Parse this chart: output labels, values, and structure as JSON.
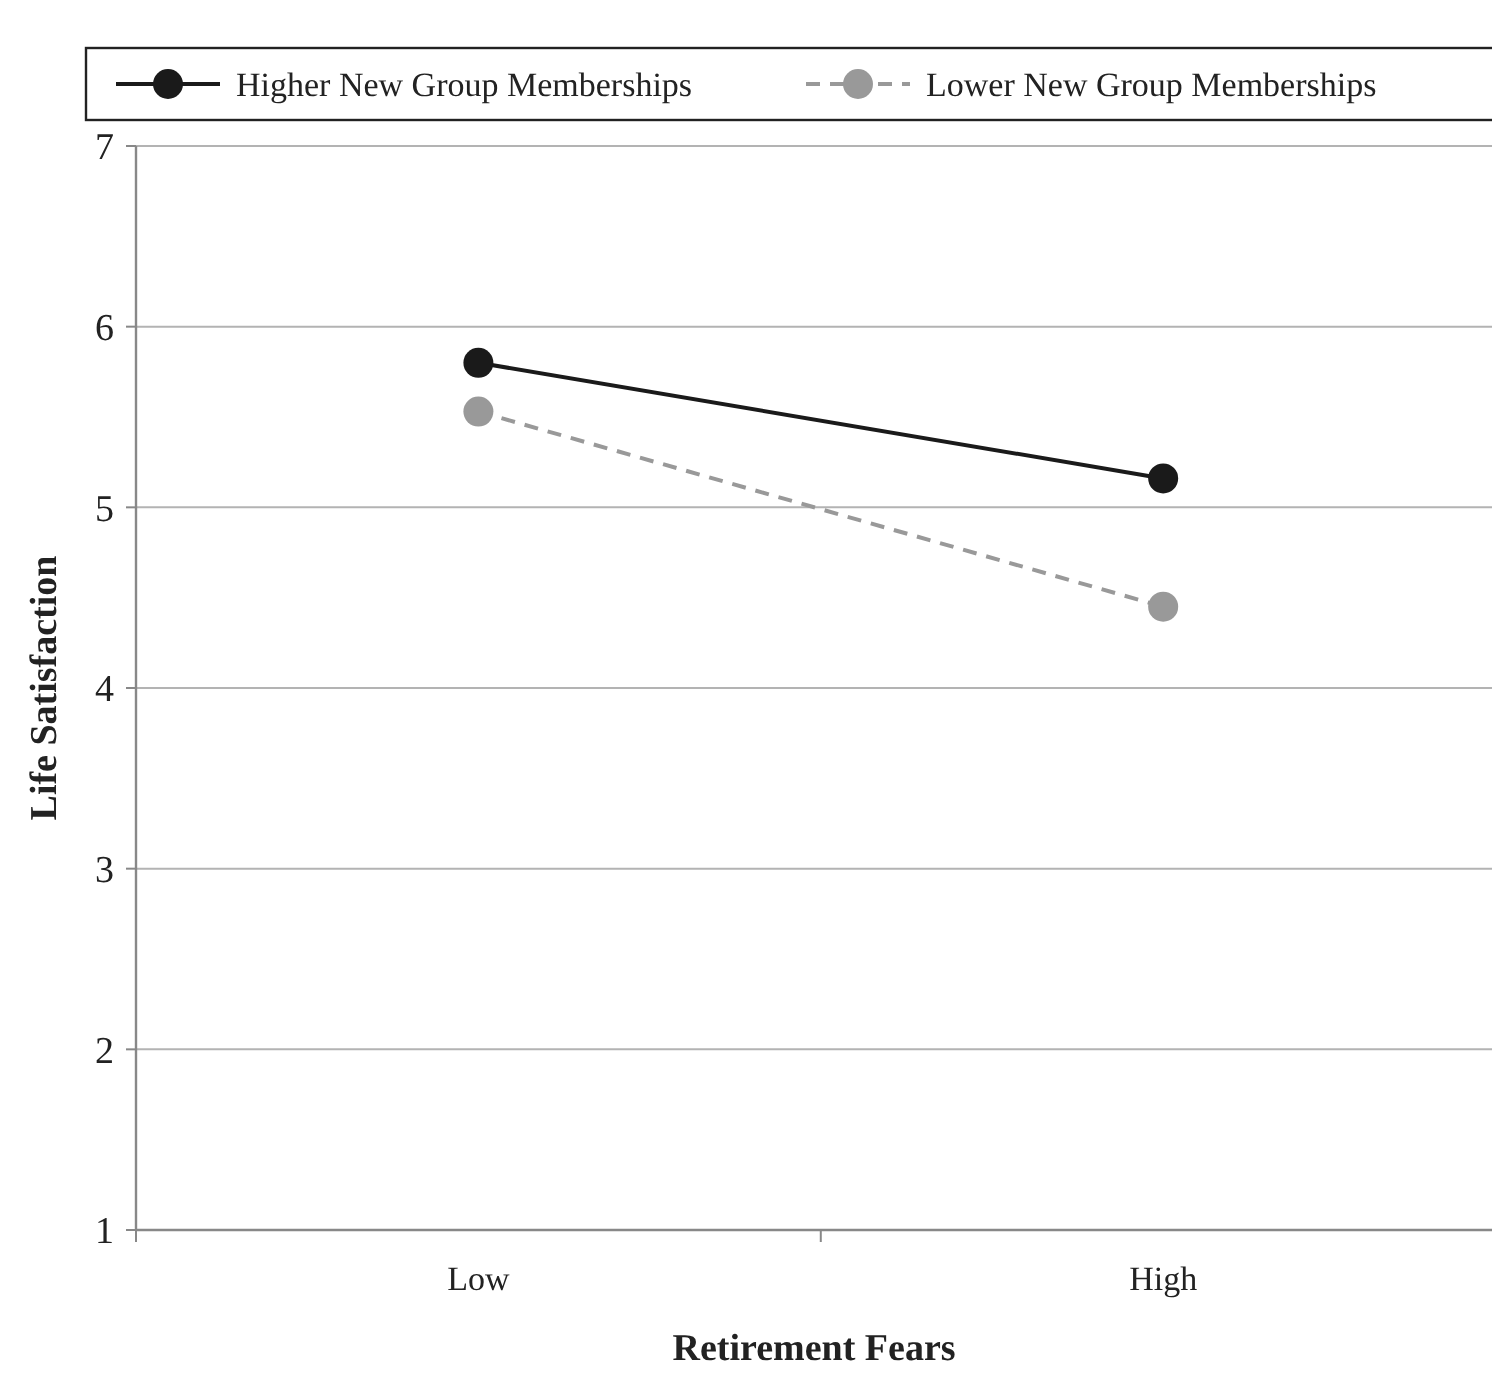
{
  "chart_data": {
    "type": "line",
    "xlabel": "Retirement Fears",
    "ylabel": "Life Satisfaction",
    "categories": [
      "Low",
      "High"
    ],
    "series": [
      {
        "name": "Higher New Group Memberships",
        "color": "#1a1a1a",
        "values": [
          5.8,
          5.16
        ],
        "line_style": "solid"
      },
      {
        "name": "Lower New Group Memberships",
        "color": "#999999",
        "values": [
          5.53,
          4.45
        ],
        "line_style": "dashed"
      }
    ],
    "ylim": [
      1,
      7
    ],
    "yticks": [
      1,
      2,
      3,
      4,
      5,
      6,
      7
    ],
    "grid": "y",
    "legend": "top",
    "marker": "circle"
  }
}
